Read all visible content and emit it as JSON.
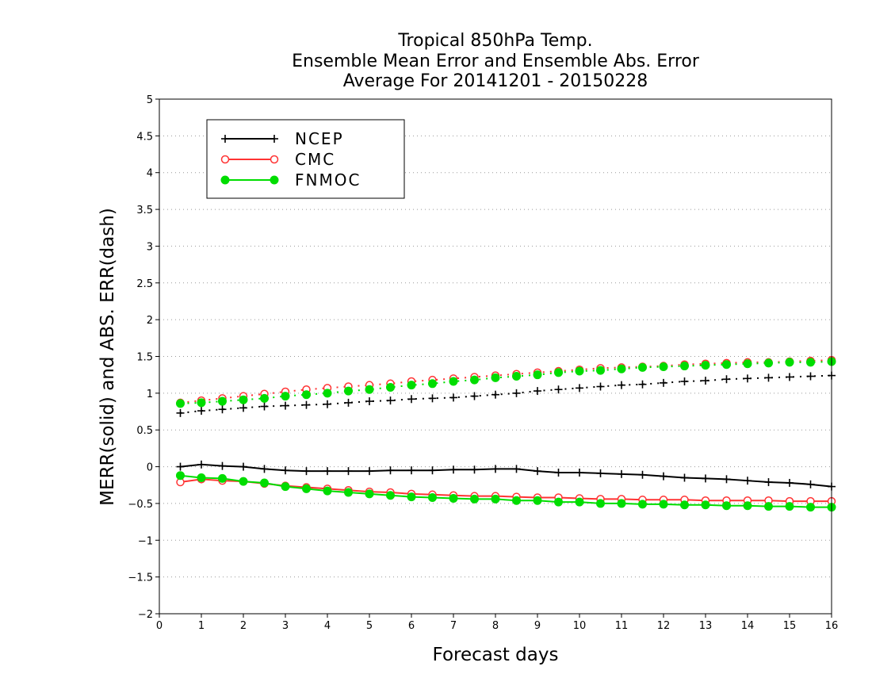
{
  "chart_data": {
    "type": "line",
    "title_lines": [
      "Tropical 850hPa Temp.",
      "Ensemble Mean Error and Ensemble Abs. Error",
      "Average For 20141201 - 20150228"
    ],
    "xlabel": "Forecast days",
    "ylabel": "MERR(solid) and ABS. ERR(dash)",
    "xlim": [
      0,
      16
    ],
    "ylim": [
      -2,
      5
    ],
    "x_ticks": [
      "0",
      "1",
      "2",
      "3",
      "4",
      "5",
      "6",
      "7",
      "8",
      "9",
      "10",
      "11",
      "12",
      "13",
      "14",
      "15",
      "16"
    ],
    "y_ticks": [
      "−2",
      "−1.5",
      "−1",
      "−0.5",
      "0",
      "0.5",
      "1",
      "1.5",
      "2",
      "2.5",
      "3",
      "3.5",
      "4",
      "4.5",
      "5"
    ],
    "grid": "horizontal dotted",
    "legend_position": "top-left",
    "x": [
      0.5,
      1,
      1.5,
      2,
      2.5,
      3,
      3.5,
      4,
      4.5,
      5,
      5.5,
      6,
      6.5,
      7,
      7.5,
      8,
      8.5,
      9,
      9.5,
      10,
      10.5,
      11,
      11.5,
      12,
      12.5,
      13,
      13.5,
      14,
      14.5,
      15,
      15.5,
      16
    ],
    "series": [
      {
        "name": "NCEP",
        "color": "#000000",
        "marker": "plus",
        "merr": [
          0.0,
          0.03,
          0.01,
          0.0,
          -0.03,
          -0.05,
          -0.06,
          -0.06,
          -0.06,
          -0.06,
          -0.05,
          -0.05,
          -0.05,
          -0.04,
          -0.04,
          -0.03,
          -0.03,
          -0.06,
          -0.08,
          -0.08,
          -0.09,
          -0.1,
          -0.11,
          -0.13,
          -0.15,
          -0.16,
          -0.17,
          -0.19,
          -0.21,
          -0.22,
          -0.24,
          -0.27
        ],
        "abs_err": [
          0.73,
          0.76,
          0.78,
          0.8,
          0.82,
          0.83,
          0.84,
          0.85,
          0.87,
          0.89,
          0.9,
          0.92,
          0.93,
          0.94,
          0.96,
          0.98,
          1.0,
          1.03,
          1.05,
          1.07,
          1.09,
          1.11,
          1.12,
          1.14,
          1.16,
          1.17,
          1.19,
          1.2,
          1.21,
          1.22,
          1.23,
          1.24
        ]
      },
      {
        "name": "CMC",
        "color": "#ff3333",
        "marker": "open-circle",
        "merr": [
          -0.21,
          -0.17,
          -0.19,
          -0.2,
          -0.23,
          -0.26,
          -0.28,
          -0.3,
          -0.32,
          -0.34,
          -0.35,
          -0.37,
          -0.38,
          -0.39,
          -0.4,
          -0.4,
          -0.41,
          -0.42,
          -0.42,
          -0.43,
          -0.44,
          -0.44,
          -0.45,
          -0.45,
          -0.45,
          -0.46,
          -0.46,
          -0.46,
          -0.46,
          -0.47,
          -0.47,
          -0.47
        ],
        "abs_err": [
          0.87,
          0.9,
          0.93,
          0.96,
          0.99,
          1.02,
          1.05,
          1.07,
          1.09,
          1.11,
          1.13,
          1.16,
          1.18,
          1.2,
          1.22,
          1.24,
          1.26,
          1.28,
          1.3,
          1.32,
          1.34,
          1.35,
          1.36,
          1.37,
          1.39,
          1.4,
          1.41,
          1.42,
          1.42,
          1.43,
          1.44,
          1.45
        ]
      },
      {
        "name": "FNMOC",
        "color": "#00dd00",
        "marker": "filled-circle",
        "merr": [
          -0.12,
          -0.15,
          -0.16,
          -0.2,
          -0.22,
          -0.27,
          -0.3,
          -0.33,
          -0.35,
          -0.37,
          -0.39,
          -0.41,
          -0.42,
          -0.43,
          -0.44,
          -0.44,
          -0.46,
          -0.46,
          -0.48,
          -0.48,
          -0.5,
          -0.5,
          -0.51,
          -0.51,
          -0.52,
          -0.52,
          -0.53,
          -0.53,
          -0.54,
          -0.54,
          -0.55,
          -0.55
        ],
        "abs_err": [
          0.86,
          0.87,
          0.89,
          0.91,
          0.93,
          0.96,
          0.98,
          1.0,
          1.03,
          1.05,
          1.08,
          1.11,
          1.13,
          1.16,
          1.18,
          1.21,
          1.23,
          1.25,
          1.28,
          1.3,
          1.31,
          1.33,
          1.35,
          1.36,
          1.37,
          1.38,
          1.39,
          1.4,
          1.41,
          1.42,
          1.42,
          1.43
        ]
      }
    ]
  }
}
